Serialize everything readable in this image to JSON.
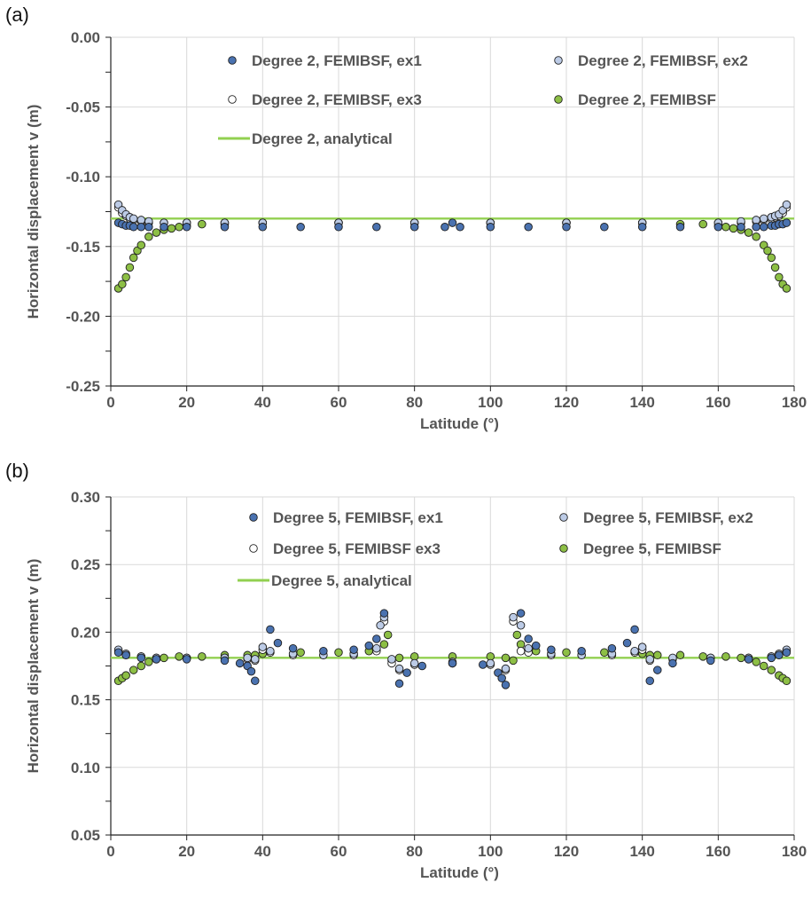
{
  "panels": {
    "a": {
      "label": "(a)"
    },
    "b": {
      "label": "(b)"
    }
  },
  "colors": {
    "ex1": "#4a72b0",
    "ex2": "#bccbe6",
    "ex3": "#ffffff",
    "femibsf": "#8dbf45",
    "analytical": "#92d050",
    "grid": "#d9d9d9"
  },
  "chart_data": [
    {
      "type": "scatter",
      "xlabel": "Latitude (°)",
      "ylabel": "Horizontal displacement v (m)",
      "xlim": [
        0,
        180
      ],
      "ylim": [
        -0.25,
        0.0
      ],
      "xticks": [
        0,
        20,
        40,
        60,
        80,
        100,
        120,
        140,
        160,
        180
      ],
      "yticks": [
        0.0,
        -0.05,
        -0.1,
        -0.15,
        -0.2,
        -0.25
      ],
      "ytick_labels": [
        "0.00",
        "-0.05",
        "-0.10",
        "-0.15",
        "-0.20",
        "-0.25"
      ],
      "grid": true,
      "legend_placement": "top",
      "analytical": {
        "name": "Degree 2, analytical",
        "value": -0.13
      },
      "series": [
        {
          "name": "Degree 2, FEMIBSF, ex1",
          "key": "ex1",
          "x": [
            2,
            3,
            4,
            5,
            6,
            8,
            10,
            14,
            20,
            30,
            40,
            50,
            60,
            70,
            80,
            88,
            90,
            92,
            100,
            110,
            120,
            130,
            140,
            150,
            160,
            166,
            170,
            172,
            174,
            175,
            176,
            177,
            178
          ],
          "y": [
            -0.133,
            -0.134,
            -0.135,
            -0.135,
            -0.136,
            -0.136,
            -0.136,
            -0.136,
            -0.136,
            -0.136,
            -0.136,
            -0.136,
            -0.136,
            -0.136,
            -0.136,
            -0.136,
            -0.133,
            -0.136,
            -0.136,
            -0.136,
            -0.136,
            -0.136,
            -0.136,
            -0.136,
            -0.136,
            -0.136,
            -0.136,
            -0.136,
            -0.135,
            -0.135,
            -0.134,
            -0.134,
            -0.133
          ]
        },
        {
          "name": "Degree 2, FEMIBSF, ex2",
          "key": "ex2",
          "x": [
            2,
            3,
            4,
            5,
            6,
            8,
            10,
            14,
            20,
            30,
            40,
            60,
            80,
            100,
            120,
            140,
            160,
            166,
            170,
            172,
            174,
            175,
            176,
            177,
            178
          ],
          "y": [
            -0.12,
            -0.124,
            -0.127,
            -0.129,
            -0.13,
            -0.131,
            -0.132,
            -0.133,
            -0.133,
            -0.133,
            -0.133,
            -0.133,
            -0.133,
            -0.133,
            -0.133,
            -0.133,
            -0.133,
            -0.132,
            -0.131,
            -0.13,
            -0.129,
            -0.128,
            -0.127,
            -0.124,
            -0.12
          ]
        },
        {
          "name": "Degree 2, FEMIBSF, ex3",
          "key": "ex3",
          "x": [
            2,
            3,
            4,
            5,
            6,
            8,
            10,
            14,
            20,
            30,
            40,
            60,
            80,
            100,
            120,
            140,
            160,
            166,
            170,
            172,
            174,
            175,
            176,
            177,
            178
          ],
          "y": [
            -0.122,
            -0.126,
            -0.128,
            -0.13,
            -0.131,
            -0.132,
            -0.133,
            -0.133,
            -0.133,
            -0.133,
            -0.133,
            -0.133,
            -0.133,
            -0.133,
            -0.133,
            -0.133,
            -0.133,
            -0.133,
            -0.132,
            -0.131,
            -0.13,
            -0.129,
            -0.128,
            -0.126,
            -0.122
          ]
        },
        {
          "name": "Degree 2, FEMIBSF",
          "key": "femibsf",
          "x": [
            2,
            3,
            4,
            5,
            6,
            7,
            8,
            10,
            12,
            14,
            16,
            18,
            20,
            24,
            30,
            40,
            60,
            80,
            100,
            120,
            140,
            150,
            156,
            160,
            162,
            164,
            166,
            168,
            170,
            172,
            173,
            174,
            175,
            176,
            177,
            178
          ],
          "y": [
            -0.18,
            -0.177,
            -0.172,
            -0.165,
            -0.158,
            -0.153,
            -0.149,
            -0.143,
            -0.14,
            -0.138,
            -0.137,
            -0.136,
            -0.135,
            -0.134,
            -0.134,
            -0.133,
            -0.133,
            -0.133,
            -0.133,
            -0.133,
            -0.133,
            -0.134,
            -0.134,
            -0.135,
            -0.136,
            -0.137,
            -0.138,
            -0.14,
            -0.143,
            -0.149,
            -0.153,
            -0.158,
            -0.165,
            -0.172,
            -0.177,
            -0.18
          ]
        }
      ]
    },
    {
      "type": "scatter",
      "xlabel": "Latitude (°)",
      "ylabel": "Horizontal displacement v (m)",
      "xlim": [
        0,
        180
      ],
      "ylim": [
        0.05,
        0.3
      ],
      "xticks": [
        0,
        20,
        40,
        60,
        80,
        100,
        120,
        140,
        160,
        180
      ],
      "yticks": [
        0.3,
        0.25,
        0.2,
        0.15,
        0.1,
        0.05
      ],
      "ytick_labels": [
        "0.30",
        "0.25",
        "0.20",
        "0.15",
        "0.10",
        "0.05"
      ],
      "grid": true,
      "legend_placement": "top",
      "analytical": {
        "name": "Degree 5, analytical",
        "value": 0.181
      },
      "series": [
        {
          "name": "Degree 5, FEMIBSF, ex1",
          "key": "ex1",
          "x": [
            2,
            4,
            8,
            12,
            20,
            30,
            34,
            36,
            37,
            38,
            42,
            44,
            48,
            56,
            64,
            68,
            70,
            72,
            76,
            78,
            82,
            90,
            98,
            102,
            103,
            104,
            108,
            110,
            112,
            116,
            124,
            132,
            136,
            138,
            142,
            144,
            148,
            158,
            168,
            174,
            176,
            178
          ],
          "y": [
            0.185,
            0.183,
            0.181,
            0.18,
            0.18,
            0.179,
            0.177,
            0.175,
            0.171,
            0.164,
            0.202,
            0.192,
            0.188,
            0.186,
            0.187,
            0.19,
            0.195,
            0.214,
            0.162,
            0.17,
            0.175,
            0.177,
            0.176,
            0.17,
            0.166,
            0.161,
            0.214,
            0.195,
            0.19,
            0.187,
            0.186,
            0.188,
            0.192,
            0.202,
            0.164,
            0.172,
            0.177,
            0.179,
            0.18,
            0.181,
            0.183,
            0.185
          ]
        },
        {
          "name": "Degree 5, FEMIBSF, ex2",
          "key": "ex2",
          "x": [
            2,
            4,
            8,
            12,
            20,
            30,
            36,
            38,
            40,
            42,
            48,
            56,
            64,
            70,
            71,
            72,
            74,
            76,
            80,
            90,
            100,
            104,
            106,
            108,
            110,
            116,
            124,
            132,
            138,
            140,
            142,
            148,
            158,
            168,
            174,
            176,
            178
          ],
          "y": [
            0.187,
            0.184,
            0.182,
            0.181,
            0.181,
            0.181,
            0.181,
            0.18,
            0.189,
            0.186,
            0.184,
            0.183,
            0.184,
            0.188,
            0.205,
            0.211,
            0.18,
            0.173,
            0.177,
            0.178,
            0.177,
            0.173,
            0.211,
            0.205,
            0.188,
            0.184,
            0.183,
            0.184,
            0.186,
            0.189,
            0.18,
            0.181,
            0.181,
            0.181,
            0.182,
            0.184,
            0.187
          ]
        },
        {
          "name": "Degree 5, FEMIBSF ex3",
          "key": "ex3",
          "x": [
            2,
            4,
            8,
            12,
            20,
            30,
            36,
            38,
            40,
            42,
            48,
            56,
            64,
            70,
            72,
            74,
            76,
            80,
            90,
            100,
            104,
            106,
            108,
            110,
            116,
            124,
            132,
            138,
            140,
            142,
            148,
            158,
            168,
            174,
            176,
            178
          ],
          "y": [
            0.186,
            0.183,
            0.182,
            0.181,
            0.181,
            0.181,
            0.18,
            0.179,
            0.187,
            0.185,
            0.183,
            0.183,
            0.183,
            0.186,
            0.208,
            0.177,
            0.172,
            0.176,
            0.177,
            0.176,
            0.172,
            0.208,
            0.186,
            0.185,
            0.183,
            0.183,
            0.183,
            0.185,
            0.187,
            0.179,
            0.18,
            0.181,
            0.181,
            0.182,
            0.183,
            0.186
          ]
        },
        {
          "name": "Degree 5, FEMIBSF",
          "key": "femibsf",
          "x": [
            2,
            3,
            4,
            6,
            8,
            10,
            12,
            14,
            18,
            24,
            30,
            36,
            38,
            40,
            42,
            50,
            60,
            68,
            70,
            72,
            73,
            74,
            76,
            80,
            90,
            100,
            104,
            106,
            107,
            108,
            110,
            112,
            120,
            130,
            138,
            140,
            142,
            144,
            150,
            156,
            162,
            166,
            168,
            170,
            172,
            174,
            176,
            177,
            178
          ],
          "y": [
            0.164,
            0.166,
            0.168,
            0.172,
            0.175,
            0.178,
            0.18,
            0.181,
            0.182,
            0.182,
            0.183,
            0.183,
            0.183,
            0.184,
            0.185,
            0.185,
            0.185,
            0.186,
            0.187,
            0.191,
            0.198,
            0.179,
            0.181,
            0.182,
            0.182,
            0.182,
            0.181,
            0.179,
            0.198,
            0.191,
            0.187,
            0.186,
            0.185,
            0.185,
            0.185,
            0.184,
            0.183,
            0.183,
            0.183,
            0.182,
            0.182,
            0.181,
            0.18,
            0.178,
            0.175,
            0.172,
            0.168,
            0.166,
            0.164
          ]
        }
      ]
    }
  ]
}
